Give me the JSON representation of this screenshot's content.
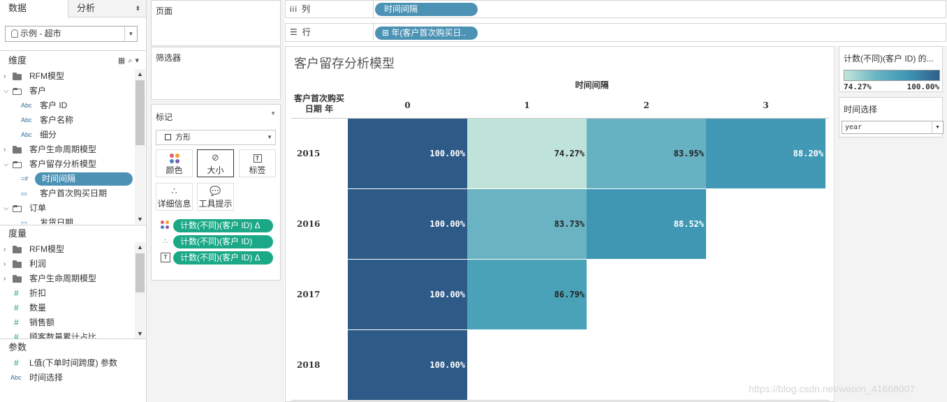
{
  "tabs": {
    "data": "数据",
    "analysis": "分析"
  },
  "datasource": "示例 - 超市",
  "dimensions": {
    "title": "维度",
    "items": [
      {
        "label": "RFM模型",
        "kind": "folder",
        "state": "closed"
      },
      {
        "label": "客户",
        "kind": "folder",
        "state": "open"
      },
      {
        "label": "客户 ID",
        "kind": "abc"
      },
      {
        "label": "客户名称",
        "kind": "abc"
      },
      {
        "label": "细分",
        "kind": "abc"
      },
      {
        "label": "客户生命周期模型",
        "kind": "folder",
        "state": "closed"
      },
      {
        "label": "客户留存分析模型",
        "kind": "folder",
        "state": "open"
      },
      {
        "label": "时间间隔",
        "kind": "calc-selected"
      },
      {
        "label": "客户首次购买日期",
        "kind": "date"
      },
      {
        "label": "订单",
        "kind": "folder",
        "state": "open"
      },
      {
        "label": "发货日期",
        "kind": "date-cut"
      }
    ]
  },
  "measures": {
    "title": "度量",
    "items": [
      {
        "label": "RFM模型",
        "kind": "folder"
      },
      {
        "label": "利润",
        "kind": "folder"
      },
      {
        "label": "客户生命周期模型",
        "kind": "folder"
      },
      {
        "label": "折扣",
        "kind": "hash"
      },
      {
        "label": "数量",
        "kind": "hash"
      },
      {
        "label": "销售额",
        "kind": "hash"
      },
      {
        "label": "顾客数量累计占比",
        "kind": "hash-cut"
      }
    ]
  },
  "parameters": {
    "title": "参数",
    "items": [
      {
        "label": "L值(下单时间跨度) 参数",
        "kind": "hash"
      },
      {
        "label": "时间选择",
        "kind": "abc"
      }
    ]
  },
  "cards": {
    "pages": "页面",
    "filters": "筛选器",
    "marks": "标记"
  },
  "marks": {
    "type": "方形",
    "buttons": {
      "color": "颜色",
      "size": "大小",
      "label": "标签",
      "detail": "详细信息",
      "tooltip": "工具提示"
    },
    "pills": [
      "计数(不同)(客户 ID)  Δ",
      "计数(不同)(客户 ID)",
      "计数(不同)(客户 ID)  Δ"
    ]
  },
  "shelves": {
    "columns": {
      "label": "列",
      "pill": "时间间隔"
    },
    "rows": {
      "label": "行",
      "pill": "⊞ 年(客户首次购买日.."
    }
  },
  "view": {
    "title": "客户留存分析模型",
    "col_header_title": "时间间隔",
    "row_header_title": "客户首次购买日期 年",
    "columns": [
      "0",
      "1",
      "2",
      "3"
    ],
    "rows": [
      {
        "year": "2015",
        "cells": [
          "100.00%",
          "74.27%",
          "83.95%",
          "88.20%"
        ]
      },
      {
        "year": "2016",
        "cells": [
          "100.00%",
          "83.73%",
          "88.52%",
          ""
        ]
      },
      {
        "year": "2017",
        "cells": [
          "100.00%",
          "86.79%",
          "",
          ""
        ]
      },
      {
        "year": "2018",
        "cells": [
          "100.00%",
          "",
          "",
          ""
        ]
      }
    ],
    "colors": {
      "100.00%": "#2e5a87",
      "74.27%": "#bfe3d9",
      "83.95%": "#66b1c2",
      "88.20%": "#4199b6",
      "83.73%": "#69b3c3",
      "88.52%": "#3f97b4",
      "86.79%": "#4aa2b9"
    }
  },
  "legend": {
    "title": "计数(不同)(客户 ID) 的...",
    "min": "74.27%",
    "max": "100.00%"
  },
  "param_card": {
    "title": "时间选择",
    "value": "year"
  },
  "watermark": "https://blog.csdn.net/weixin_41668007"
}
